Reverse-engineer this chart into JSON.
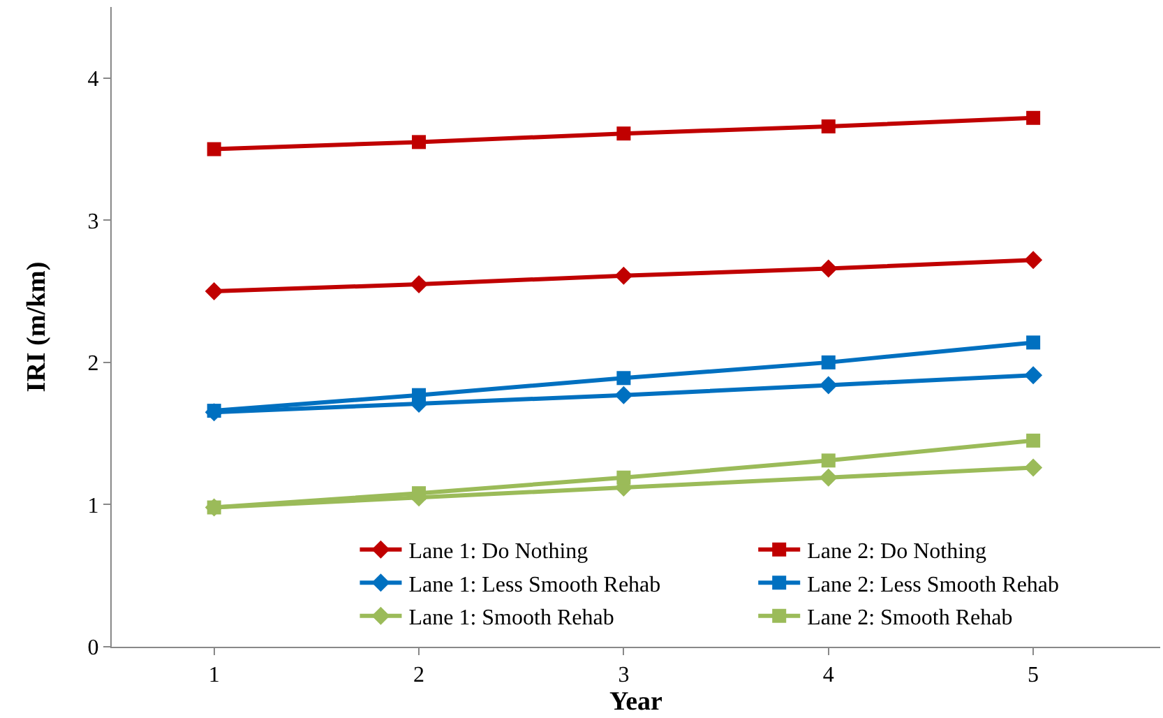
{
  "chart_data": {
    "type": "line",
    "xlabel": "Year",
    "ylabel": "IRI (m/km)",
    "categories": [
      "1",
      "2",
      "3",
      "4",
      "5"
    ],
    "ylim": [
      0,
      4.5
    ],
    "yticks": [
      0,
      1,
      2,
      3,
      4
    ],
    "grid": false,
    "legend": "bottom right",
    "series": [
      {
        "name": "Lane 1: Do Nothing",
        "color": "#c00000",
        "marker": "diamond",
        "values": [
          2.5,
          2.55,
          2.61,
          2.66,
          2.72
        ]
      },
      {
        "name": "Lane 2: Do Nothing",
        "color": "#c00000",
        "marker": "square",
        "values": [
          3.5,
          3.55,
          3.61,
          3.66,
          3.72
        ]
      },
      {
        "name": "Lane 1: Less Smooth Rehab",
        "color": "#0070c0",
        "marker": "diamond",
        "values": [
          1.65,
          1.71,
          1.77,
          1.84,
          1.91
        ]
      },
      {
        "name": "Lane 2: Less Smooth Rehab",
        "color": "#0070c0",
        "marker": "square",
        "values": [
          1.66,
          1.77,
          1.89,
          2.0,
          2.14
        ]
      },
      {
        "name": "Lane 1: Smooth Rehab",
        "color": "#9bbb59",
        "marker": "diamond",
        "values": [
          0.98,
          1.05,
          1.12,
          1.19,
          1.26
        ]
      },
      {
        "name": "Lane 2: Smooth Rehab",
        "color": "#9bbb59",
        "marker": "square",
        "values": [
          0.98,
          1.08,
          1.19,
          1.31,
          1.45
        ]
      }
    ]
  }
}
